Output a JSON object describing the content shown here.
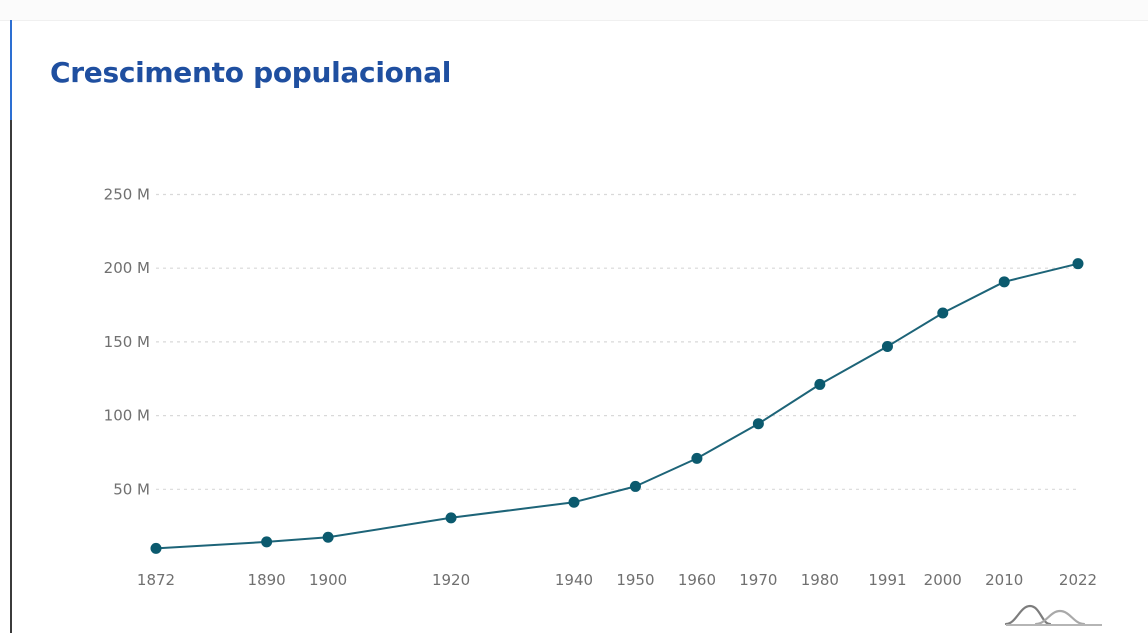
{
  "chart_data": {
    "type": "line",
    "title": "Crescimento populacional",
    "xlabel": "",
    "ylabel": "",
    "x": [
      "1872",
      "1890",
      "1900",
      "1920",
      "1940",
      "1950",
      "1960",
      "1970",
      "1980",
      "1991",
      "2000",
      "2010",
      "2022"
    ],
    "series": [
      {
        "values": [
          9930478,
          14333915,
          17438434,
          30635605,
          41236315,
          51944397,
          70992343,
          94508583,
          121150573,
          146917459,
          169590693,
          190755799,
          203062512
        ]
      }
    ],
    "y_ticks": [
      50000000,
      100000000,
      150000000,
      200000000,
      250000000
    ],
    "y_tick_labels": [
      "50 M",
      "100 M",
      "150 M",
      "200 M",
      "250 M"
    ],
    "ylim": [
      0,
      250000000
    ],
    "grid": true,
    "legend": "none",
    "colors": {
      "line": "#1d6478",
      "marker": "#0b5a6e",
      "title": "#1f4fa0",
      "gridline": "#d9d9d9",
      "tick_text": "#707070"
    }
  },
  "footer": {
    "logo_icon": "mountain-logo-icon"
  }
}
